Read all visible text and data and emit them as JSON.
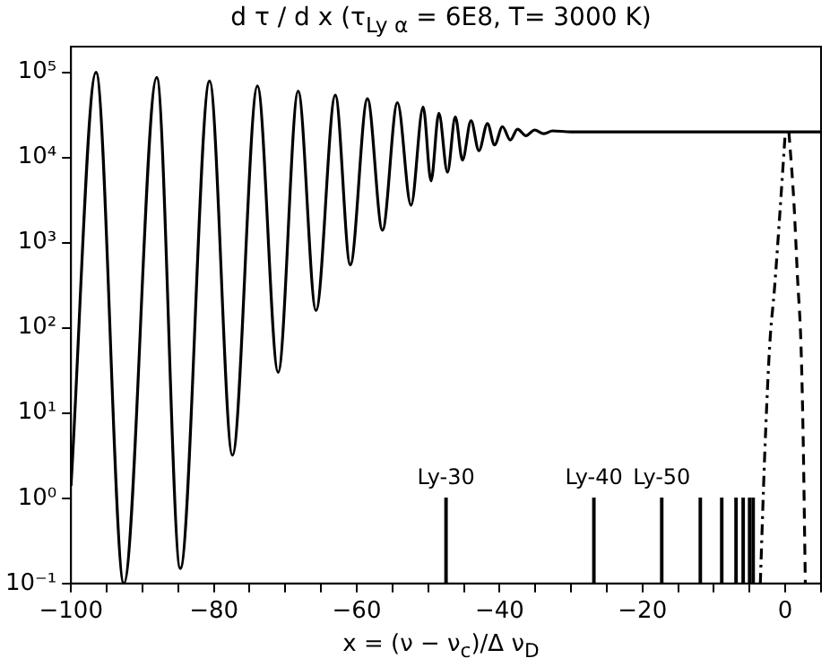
{
  "chart_data": {
    "type": "line",
    "title": "d τ / d x (τ$_{Ly α}$ = 6E8, T= 3000 K)",
    "xlabel": "x = (ν − ν$_{c}$)/Δ ν$_{D}$",
    "log": "y",
    "marker": "none",
    "legend": false,
    "xlim": [
      -100,
      5
    ],
    "xticks": [
      -100,
      {
        "value": -95,
        "label": null
      },
      {
        "value": -90,
        "label": null
      },
      {
        "value": -85,
        "label": null
      },
      -80,
      {
        "value": -75,
        "label": null
      },
      {
        "value": -70,
        "label": null
      },
      {
        "value": -65,
        "label": null
      },
      -60,
      {
        "value": -55,
        "label": null
      },
      {
        "value": -50,
        "label": null
      },
      {
        "value": -45,
        "label": null
      },
      -40,
      {
        "value": -35,
        "label": null
      },
      {
        "value": -30,
        "label": null
      },
      {
        "value": -25,
        "label": null
      },
      -20,
      {
        "value": -15,
        "label": null
      },
      {
        "value": -10,
        "label": null
      },
      {
        "value": -5,
        "label": null
      },
      0,
      {
        "value": 5,
        "label": null
      }
    ],
    "ylim": [
      0.1,
      200000
    ],
    "yticks": [
      {
        "value": 0.1,
        "label": "10⁻¹"
      },
      {
        "value": 1,
        "label": "10⁰"
      },
      {
        "value": 10,
        "label": "10¹"
      },
      {
        "value": 100,
        "label": "10²"
      },
      {
        "value": 1000,
        "label": "10³"
      },
      {
        "value": 10000,
        "label": "10⁴"
      },
      {
        "value": 100000,
        "label": "10⁵"
      }
    ],
    "series": [
      {
        "line_style": "solid",
        "color": "#000000",
        "x": [
          -100,
          -96.5,
          -92.6,
          -88.0,
          -84.7,
          -80.6,
          -77.4,
          -73.9,
          -71.0,
          -68.2,
          -65.7,
          -63.0,
          -60.9,
          -58.5,
          -56.4,
          -54.3,
          -52.4,
          -50.7,
          -49.6,
          -48.5,
          -47.3,
          -46.2,
          -45.2,
          -44.0,
          -42.9,
          -41.7,
          -40.7,
          -39.6,
          -38.5,
          -37.5,
          -36.3,
          -35.1,
          -33.8,
          -32.6,
          -30,
          5
        ],
        "values": [
          1.4,
          100000,
          0.1,
          87000,
          0.15,
          79000,
          3.2,
          69000,
          30,
          60000,
          160,
          54000,
          550,
          49000,
          1400,
          44000,
          2750,
          39000,
          5300,
          33000,
          6700,
          30000,
          9300,
          27000,
          12000,
          25000,
          14000,
          23000,
          16000,
          21500,
          18000,
          21000,
          19000,
          20500,
          20000,
          20000
        ]
      },
      {
        "line_style": "dotted",
        "color": "#000000",
        "x": [
          -3.5,
          -2.9,
          -2.2,
          -1.5,
          -0.8,
          0
        ],
        "values": [
          0.1,
          3,
          60,
          300,
          2000,
          20000
        ]
      },
      {
        "line_style": "dashed",
        "color": "#000000",
        "x": [
          0.5,
          1.2,
          1.7,
          2.2,
          2.5,
          2.8
        ],
        "values": [
          20000,
          3000,
          400,
          60,
          5,
          0.1
        ]
      },
      {
        "type": "bar",
        "color": "#000000",
        "x": [
          -47.5,
          -26.8,
          -17.3,
          -11.9,
          -8.9,
          -6.9,
          -5.9,
          -5.0,
          -4.5
        ],
        "values": [
          1,
          1,
          1,
          1,
          1,
          1,
          1,
          1,
          1
        ],
        "value_labels": [
          "Ly-30",
          "Ly-40",
          "Ly-50",
          null,
          null,
          null,
          null,
          null,
          null
        ]
      }
    ]
  }
}
